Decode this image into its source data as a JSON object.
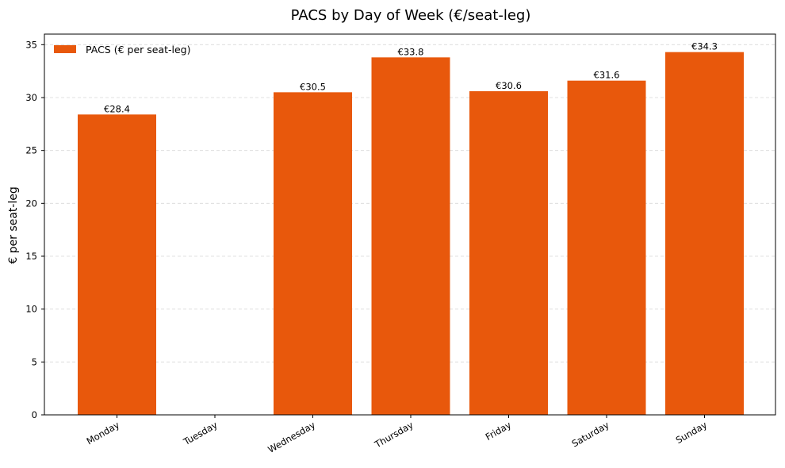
{
  "chart_data": {
    "type": "bar",
    "title": "PACS by Day of Week (€/seat-leg)",
    "xlabel": "",
    "ylabel": "€ per seat-leg",
    "categories": [
      "Monday",
      "Tuesday",
      "Wednesday",
      "Thursday",
      "Friday",
      "Saturday",
      "Sunday"
    ],
    "series": [
      {
        "name": "PACS (€ per seat-leg)",
        "values": [
          28.4,
          null,
          30.5,
          33.8,
          30.6,
          31.6,
          34.3
        ],
        "labels": [
          "€28.4",
          "",
          "€30.5",
          "€33.8",
          "€30.6",
          "€31.6",
          "€34.3"
        ],
        "color": "#e8580c"
      }
    ],
    "ylim": [
      0,
      36
    ],
    "yticks": [
      0,
      5,
      10,
      15,
      20,
      25,
      30,
      35
    ],
    "grid": "y-dashed",
    "legend_position": "top-left"
  }
}
